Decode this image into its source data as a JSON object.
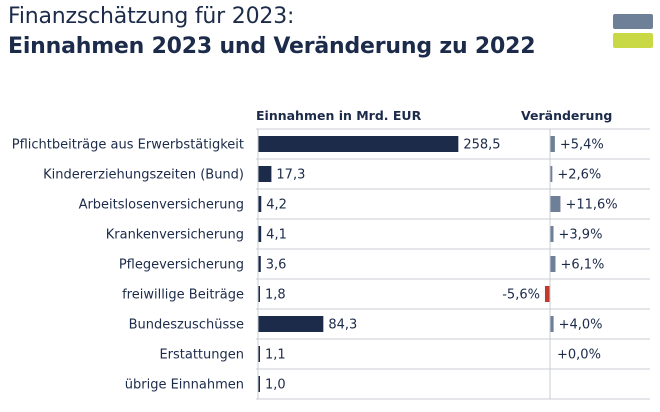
{
  "header": {
    "title_line1": "Finanzschätzung für 2023:",
    "title_line2": "Einnahmen 2023 und Veränderung zu 2022"
  },
  "colors": {
    "bar": "#1c2b4a",
    "change_positive": "#6e7f98",
    "change_negative": "#c0392b",
    "logo_top": "#6e7f98",
    "logo_bottom": "#c9d945"
  },
  "chart_data": {
    "type": "bar",
    "orientation": "horizontal",
    "value_header": "Einnahmen in Mrd. EUR",
    "change_header": "Veränderung",
    "categories": [
      "Pflichtbeiträge aus Erwerbstätigkeit",
      "Kindererziehungszeiten (Bund)",
      "Arbeitslosenversicherung",
      "Krankenversicherung",
      "Pflegeversicherung",
      "freiwillige Beiträge",
      "Bundeszuschüsse",
      "Erstattungen",
      "übrige Einnahmen"
    ],
    "values": [
      258.5,
      17.3,
      4.2,
      4.1,
      3.6,
      1.8,
      84.3,
      1.1,
      1.0
    ],
    "value_labels": [
      "258,5",
      "17,3",
      "4,2",
      "4,1",
      "3,6",
      "1,8",
      "84,3",
      "1,1",
      "1,0"
    ],
    "changes": [
      5.4,
      2.6,
      11.6,
      3.9,
      6.1,
      -5.6,
      4.0,
      0.0,
      null
    ],
    "change_labels": [
      "+5,4%",
      "+2,6%",
      "+11,6%",
      "+3,9%",
      "+6,1%",
      "-5,6%",
      "+4,0%",
      "+0,0%",
      ""
    ]
  }
}
